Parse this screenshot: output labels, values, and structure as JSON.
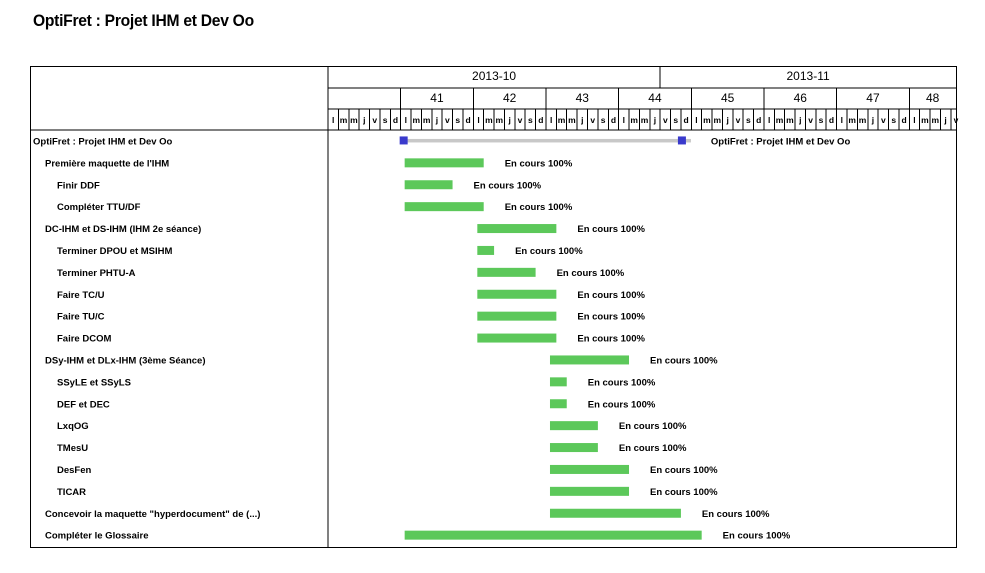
{
  "title": "OptiFret : Projet IHM et Dev Oo",
  "chart_data": {
    "type": "gantt",
    "timeline": {
      "start_date": "2013-09-30",
      "months": [
        {
          "label": "2013-10",
          "start": "2013-09-30",
          "end": "2013-11-01"
        },
        {
          "label": "2013-11",
          "start": "2013-11-01",
          "end": "2013-12-01"
        }
      ],
      "weeks": [
        {
          "label": "",
          "start": "2013-09-30",
          "end": "2013-10-07"
        },
        {
          "label": "41",
          "start": "2013-10-07",
          "end": "2013-10-14"
        },
        {
          "label": "42",
          "start": "2013-10-14",
          "end": "2013-10-21"
        },
        {
          "label": "43",
          "start": "2013-10-21",
          "end": "2013-10-28"
        },
        {
          "label": "44",
          "start": "2013-10-28",
          "end": "2013-11-04"
        },
        {
          "label": "45",
          "start": "2013-11-04",
          "end": "2013-11-11"
        },
        {
          "label": "46",
          "start": "2013-11-11",
          "end": "2013-11-18"
        },
        {
          "label": "47",
          "start": "2013-11-18",
          "end": "2013-11-25"
        },
        {
          "label": "48",
          "start": "2013-11-25",
          "end": "2013-12-01"
        }
      ],
      "day_letters": [
        "l",
        "m",
        "m",
        "j",
        "v",
        "s",
        "d"
      ]
    },
    "tasks": [
      {
        "name": "OptiFret : Projet IHM et Dev Oo",
        "indent": 0,
        "type": "summary",
        "start": "2013-10-07",
        "end": "2013-11-03",
        "status": "OptiFret : Projet IHM et Dev Oo"
      },
      {
        "name": "Première maquette de l'IHM",
        "indent": 1,
        "start": "2013-10-07",
        "end": "2013-10-15",
        "status": "En cours 100%"
      },
      {
        "name": "Finir  DDF",
        "indent": 2,
        "start": "2013-10-07",
        "end": "2013-10-12",
        "status": "En cours 100%"
      },
      {
        "name": "Compléter TTU/DF",
        "indent": 2,
        "start": "2013-10-07",
        "end": "2013-10-15",
        "status": "En cours 100%"
      },
      {
        "name": "DC-IHM et DS-IHM (IHM 2e séance)",
        "indent": 1,
        "start": "2013-10-14",
        "end": "2013-10-22",
        "status": "En cours 100%"
      },
      {
        "name": "Terminer DPOU et MSIHM",
        "indent": 2,
        "start": "2013-10-14",
        "end": "2013-10-16",
        "status": "En cours 100%"
      },
      {
        "name": "Terminer PHTU-A",
        "indent": 2,
        "start": "2013-10-14",
        "end": "2013-10-20",
        "status": "En cours 100%"
      },
      {
        "name": "Faire TC/U",
        "indent": 2,
        "start": "2013-10-14",
        "end": "2013-10-22",
        "status": "En cours 100%"
      },
      {
        "name": "Faire TU/C",
        "indent": 2,
        "start": "2013-10-14",
        "end": "2013-10-22",
        "status": "En cours 100%"
      },
      {
        "name": "Faire DCOM",
        "indent": 2,
        "start": "2013-10-14",
        "end": "2013-10-22",
        "status": "En cours 100%"
      },
      {
        "name": "DSy-IHM et DLx-IHM (3ème Séance)",
        "indent": 1,
        "start": "2013-10-21",
        "end": "2013-10-29",
        "status": "En cours 100%"
      },
      {
        "name": "SSyLE et SSyLS",
        "indent": 2,
        "start": "2013-10-21",
        "end": "2013-10-23",
        "status": "En cours 100%"
      },
      {
        "name": "DEF et DEC",
        "indent": 2,
        "start": "2013-10-21",
        "end": "2013-10-23",
        "status": "En cours 100%"
      },
      {
        "name": "LxqOG",
        "indent": 2,
        "start": "2013-10-21",
        "end": "2013-10-26",
        "status": "En cours 100%"
      },
      {
        "name": "TMesU",
        "indent": 2,
        "start": "2013-10-21",
        "end": "2013-10-26",
        "status": "En cours 100%"
      },
      {
        "name": "DesFen",
        "indent": 2,
        "start": "2013-10-21",
        "end": "2013-10-29",
        "status": "En cours 100%"
      },
      {
        "name": "TICAR",
        "indent": 2,
        "start": "2013-10-21",
        "end": "2013-10-29",
        "status": "En cours 100%"
      },
      {
        "name": "Concevoir la maquette \"hyperdocument\" de  (...)",
        "indent": 1,
        "start": "2013-10-21",
        "end": "2013-11-03",
        "status": "En cours 100%"
      },
      {
        "name": "Compléter le Glossaire",
        "indent": 1,
        "start": "2013-10-07",
        "end": "2013-11-05",
        "status": "En cours 100%"
      }
    ],
    "colors": {
      "bar": "#5cc85a",
      "summary_line": "#c8c8c8",
      "summary_marker": "#3a3acc",
      "grid": "#000000"
    }
  }
}
